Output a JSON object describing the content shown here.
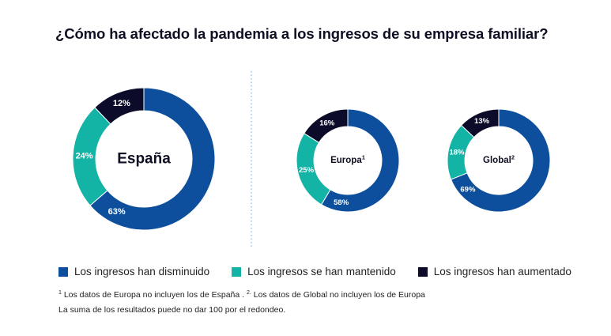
{
  "title": "¿Cómo ha afectado la pandemia a los ingresos de su empresa familiar?",
  "colors": {
    "disminuido": "#0d4f9c",
    "mantenido": "#13b3a6",
    "aumentado": "#0c0c2a",
    "divider": "#5aa9d6"
  },
  "chart_data": [
    {
      "type": "pie",
      "name": "España",
      "sup": "",
      "labels": [
        "Los ingresos han disminuido",
        "Los ingresos se han mantenido",
        "Los ingresos han aumentado"
      ],
      "values": [
        63,
        24,
        12
      ],
      "value_labels": [
        "63%",
        "24%",
        "12%"
      ]
    },
    {
      "type": "pie",
      "name": "Europa",
      "sup": "1",
      "labels": [
        "Los ingresos han disminuido",
        "Los ingresos se han mantenido",
        "Los ingresos han aumentado"
      ],
      "values": [
        58,
        25,
        16
      ],
      "value_labels": [
        "58%",
        "25%",
        "16%"
      ]
    },
    {
      "type": "pie",
      "name": "Global",
      "sup": "2",
      "labels": [
        "Los ingresos han disminuido",
        "Los ingresos se han mantenido",
        "Los ingresos han aumentado"
      ],
      "values": [
        69,
        18,
        13
      ],
      "value_labels": [
        "69%",
        "18%",
        "13%"
      ]
    }
  ],
  "legend": [
    {
      "label": "Los ingresos han disminuido",
      "color": "#0d4f9c"
    },
    {
      "label": "Los ingresos se han mantenido",
      "color": "#13b3a6"
    },
    {
      "label": "Los ingresos han aumentado",
      "color": "#0c0c2a"
    }
  ],
  "notes": {
    "footnote_sup1": "1",
    "footnote_text1": " Los datos de Europa no incluyen los de España . ",
    "footnote_sup2": "2.",
    "footnote_text2": " Los datos de Global no incluyen los de Europa",
    "line2": "La suma de los resultados puede no dar 100 por el redondeo."
  }
}
